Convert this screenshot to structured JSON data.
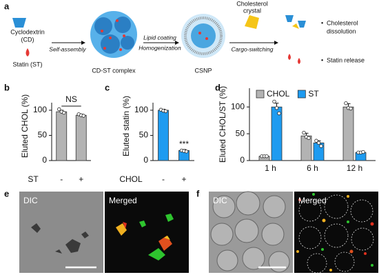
{
  "panel_labels": [
    "a",
    "b",
    "c",
    "d",
    "e",
    "f"
  ],
  "schematic": {
    "cyclodextrin": "Cyclodextrin",
    "cd": "(CD)",
    "statin": "Statin (ST)",
    "step1": "Self-assembly",
    "complex": "CD-ST complex",
    "step2_line1": "Lipid coating",
    "step2_line2": "Homogenization",
    "csnp": "CSNP",
    "crystal_line1": "Cholesterol",
    "crystal_line2": "crystal",
    "step3": "Cargo-switching",
    "outcome1_line1": "Cholesterol",
    "outcome1_line2": "dissolution",
    "outcome2": "Statin release",
    "bullet": "•"
  },
  "chart_data": [
    {
      "type": "bar",
      "ylabel": "Eluted CHOL (%)",
      "xlabel": "ST",
      "categories": [
        "-",
        "+"
      ],
      "values": [
        97,
        90
      ],
      "errors": [
        3,
        2
      ],
      "points": [
        [
          102,
          97,
          95
        ],
        [
          92,
          90,
          89
        ]
      ],
      "color": "#b3b3b3",
      "ylim": [
        0,
        115
      ],
      "yticks": [
        0,
        50,
        100
      ],
      "annotation": "NS"
    },
    {
      "type": "bar",
      "ylabel": "Eluted statin (%)",
      "xlabel": "CHOL",
      "categories": [
        "-",
        "+"
      ],
      "values": [
        100,
        20
      ],
      "errors": [
        2,
        2
      ],
      "points": [
        [
          101,
          99,
          98
        ],
        [
          20,
          19,
          18
        ]
      ],
      "color": "#1e9bf0",
      "ylim": [
        0,
        115
      ],
      "yticks": [
        0,
        50,
        100
      ],
      "annotation": "***"
    },
    {
      "type": "grouped_bar",
      "ylabel": "Eluted CHOL/ST (%)",
      "categories": [
        "1 h",
        "6 h",
        "12 h"
      ],
      "legend": "top",
      "ylim": [
        0,
        135
      ],
      "yticks": [
        0,
        50,
        100
      ],
      "series": [
        {
          "name": "CHOL",
          "color": "#b3b3b3",
          "values": [
            8,
            46,
            100
          ],
          "errors": [
            1,
            5,
            6
          ],
          "points": [
            [
              8,
              8,
              8
            ],
            [
              52,
              44,
              42
            ],
            [
              107,
              98,
              97
            ]
          ]
        },
        {
          "name": "ST",
          "color": "#1e9bf0",
          "values": [
            100,
            33,
            15
          ],
          "errors": [
            7,
            4,
            1
          ],
          "points": [
            [
              110,
              98,
              88
            ],
            [
              37,
              33,
              27
            ],
            [
              15,
              15,
              16
            ]
          ]
        }
      ]
    }
  ],
  "micrographs": {
    "e": {
      "left": "DIC",
      "right": "Merged"
    },
    "f": {
      "left": "DIC",
      "right": "Merged"
    }
  }
}
